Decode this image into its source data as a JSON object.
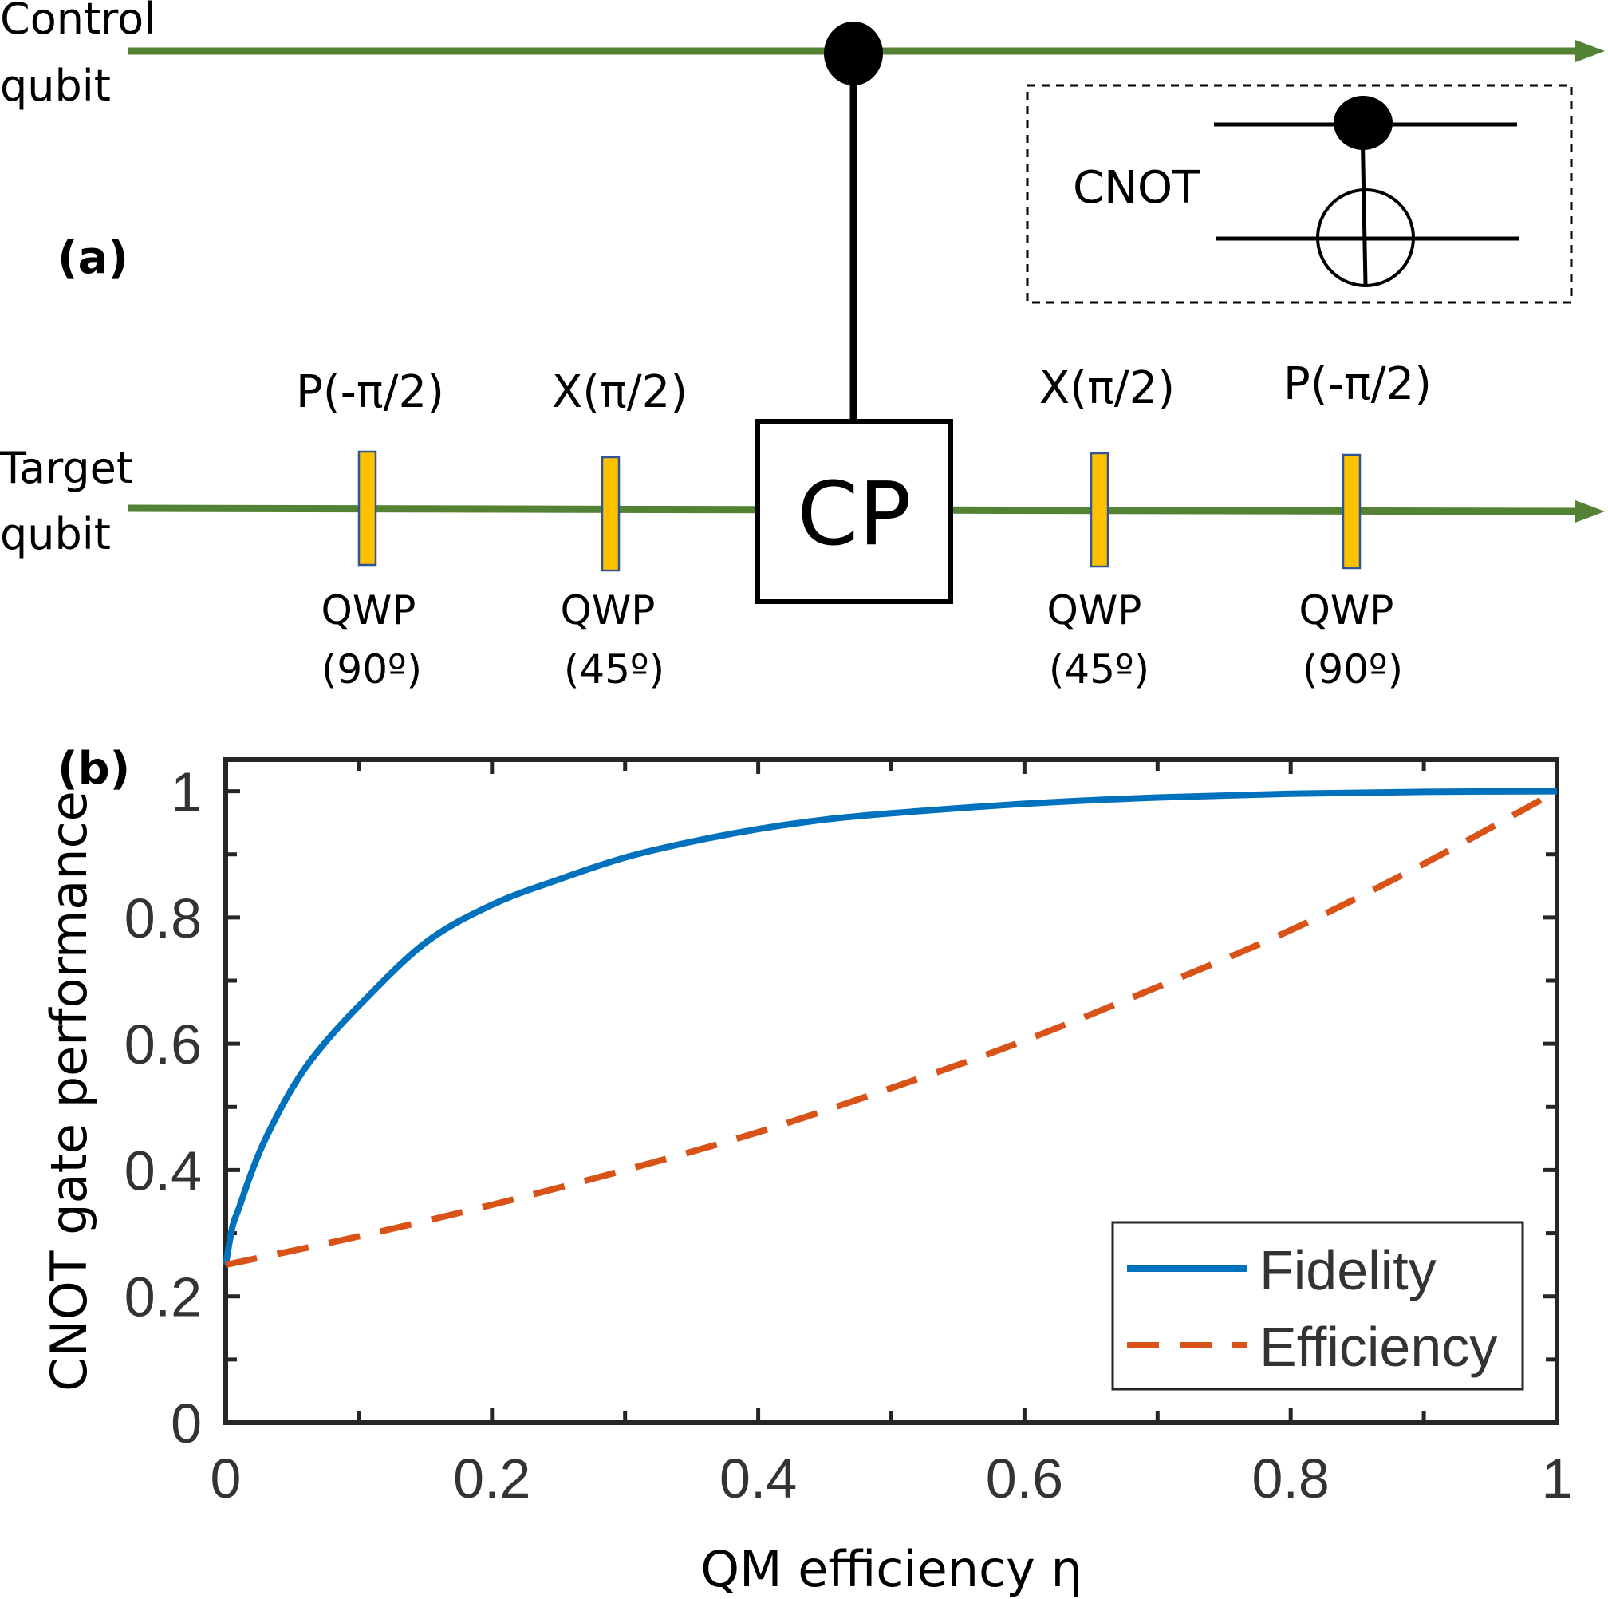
{
  "panel_a": {
    "panel_label": "(a)",
    "control_label": [
      "Control",
      "qubit"
    ],
    "target_label": [
      "Target",
      "qubit"
    ],
    "cp_label": "CP",
    "inset_label": "CNOT",
    "gates": [
      {
        "top": "P(-π/2)",
        "bottom1": "QWP",
        "bottom2": "(90º)"
      },
      {
        "top": "X(π/2)",
        "bottom1": "QWP",
        "bottom2": "(45º)"
      },
      {
        "top": "X(π/2)",
        "bottom1": "QWP",
        "bottom2": "(45º)"
      },
      {
        "top": "P(-π/2)",
        "bottom1": "QWP",
        "bottom2": "(90º)"
      }
    ],
    "colors": {
      "wire": "#548235",
      "plate": "#ffc000",
      "plate_border": "#2f5597"
    }
  },
  "panel_b": {
    "panel_label": "(b)"
  },
  "chart_data": {
    "type": "line",
    "xlabel": "QM efficiency η",
    "ylabel": "CNOT gate performance",
    "xlim": [
      0,
      1
    ],
    "ylim": [
      0,
      1.05
    ],
    "xticks": [
      0,
      0.2,
      0.4,
      0.6,
      0.8,
      1
    ],
    "xtick_labels": [
      "0",
      "0.2",
      "0.4",
      "0.6",
      "0.8",
      "1"
    ],
    "yticks": [
      0,
      0.2,
      0.4,
      0.6,
      0.8,
      1
    ],
    "ytick_labels": [
      "0",
      "0.2",
      "0.4",
      "0.6",
      "0.8",
      "1"
    ],
    "legend_position": "bottom-right",
    "series": [
      {
        "name": "Fidelity",
        "color": "#0072bd",
        "style": "solid",
        "x": [
          0,
          0.005,
          0.01,
          0.02,
          0.03,
          0.05,
          0.07,
          0.1,
          0.15,
          0.2,
          0.25,
          0.3,
          0.35,
          0.4,
          0.45,
          0.5,
          0.6,
          0.7,
          0.8,
          0.9,
          1.0
        ],
        "y": [
          0.25,
          0.31,
          0.34,
          0.4,
          0.45,
          0.53,
          0.59,
          0.66,
          0.76,
          0.82,
          0.86,
          0.895,
          0.92,
          0.94,
          0.955,
          0.965,
          0.98,
          0.99,
          0.996,
          0.999,
          1.0
        ]
      },
      {
        "name": "Efficiency",
        "color": "#d95319",
        "style": "dashed",
        "x": [
          0,
          0.1,
          0.2,
          0.3,
          0.4,
          0.5,
          0.6,
          0.7,
          0.8,
          0.9,
          1.0
        ],
        "y": [
          0.25,
          0.295,
          0.345,
          0.4,
          0.46,
          0.53,
          0.605,
          0.69,
          0.78,
          0.885,
          1.0
        ]
      }
    ]
  }
}
